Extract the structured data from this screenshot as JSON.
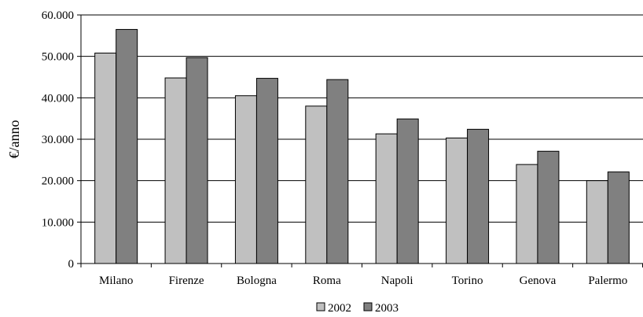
{
  "chart_data": {
    "type": "bar",
    "title": "",
    "xlabel": "",
    "ylabel": "€/anno",
    "ylim": [
      0,
      60000
    ],
    "yticks": [
      0,
      10000,
      20000,
      30000,
      40000,
      50000,
      60000
    ],
    "ytick_labels": [
      "0",
      "10.000",
      "20.000",
      "30.000",
      "40.000",
      "50.000",
      "60.000"
    ],
    "categories": [
      "Milano",
      "Firenze",
      "Bologna",
      "Roma",
      "Napoli",
      "Torino",
      "Genova",
      "Palermo"
    ],
    "series": [
      {
        "name": "2002",
        "color": "#c0c0c0",
        "values": [
          50800,
          44800,
          40500,
          38000,
          31300,
          30300,
          23900,
          20000
        ]
      },
      {
        "name": "2003",
        "color": "#808080",
        "values": [
          56500,
          49700,
          44700,
          44400,
          34900,
          32400,
          27100,
          22100
        ]
      }
    ],
    "grid": true,
    "legend_position": "bottom-center"
  }
}
